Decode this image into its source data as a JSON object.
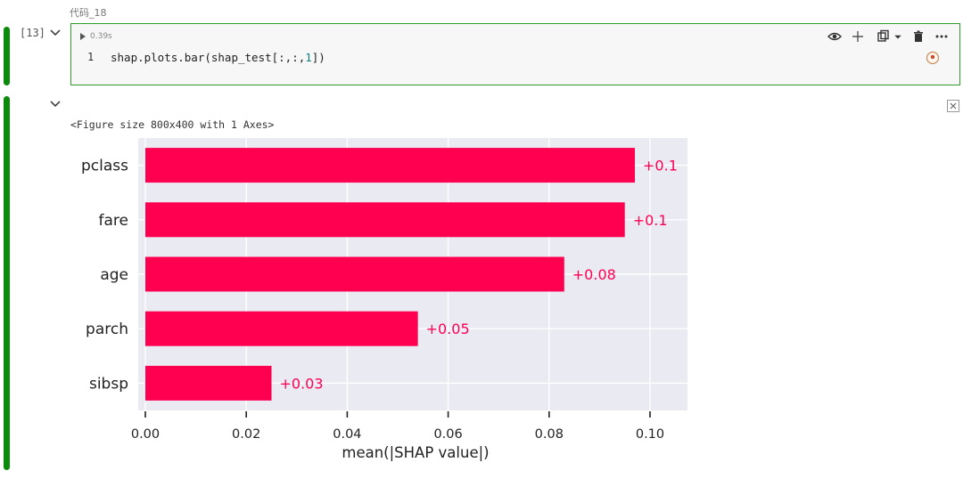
{
  "cell": {
    "label": "代码_18",
    "exec_count": "[13]",
    "run_time": "0.39s",
    "line_number": "1",
    "code_prefix": "shap.plots.bar(shap_test[:,:,",
    "code_num": "1",
    "code_suffix": "])"
  },
  "toolbar": {
    "icons": [
      "eye-icon",
      "plus-icon",
      "copy-icon",
      "chevron-down-icon",
      "trash-icon",
      "more-icon"
    ]
  },
  "output": {
    "figure_text": "<Figure size 800x400 with 1 Axes>"
  },
  "colors": {
    "bar": "#ff0051",
    "plot_bg": "#eaeaf2",
    "cell_green": "#0b8a0b"
  },
  "chart_data": {
    "type": "bar",
    "orientation": "horizontal",
    "categories": [
      "pclass",
      "fare",
      "age",
      "parch",
      "sibsp"
    ],
    "values": [
      0.097,
      0.095,
      0.083,
      0.054,
      0.025
    ],
    "value_labels": [
      "+0.1",
      "+0.1",
      "+0.08",
      "+0.05",
      "+0.03"
    ],
    "xlabel": "mean(|SHAP value|)",
    "xticks": [
      "0.00",
      "0.02",
      "0.04",
      "0.06",
      "0.08",
      "0.10"
    ],
    "xtick_values": [
      0,
      0.02,
      0.04,
      0.06,
      0.08,
      0.1
    ],
    "xlim": [
      0,
      0.1075
    ],
    "grid": true
  }
}
